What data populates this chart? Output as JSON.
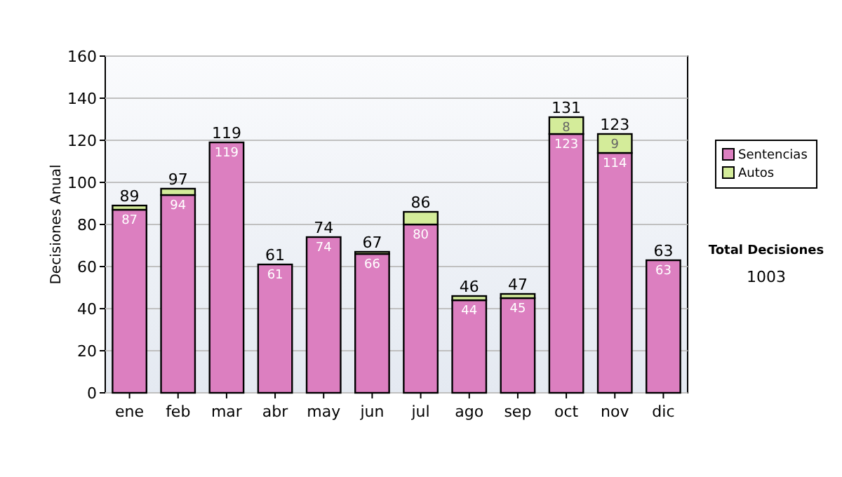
{
  "chart_data": {
    "type": "bar",
    "stacked": true,
    "ylabel": "Decisiones Anual",
    "categories": [
      "ene",
      "feb",
      "mar",
      "abr",
      "may",
      "jun",
      "jul",
      "ago",
      "sep",
      "oct",
      "nov",
      "dic"
    ],
    "series": [
      {
        "name": "Sentencias",
        "color": "#dc7fc0",
        "values": [
          87,
          94,
          119,
          61,
          74,
          66,
          80,
          44,
          45,
          123,
          114,
          63
        ],
        "value_labels": [
          "87",
          "94",
          "119",
          "61",
          "74",
          "66",
          "80",
          "44",
          "45",
          "123",
          "114",
          "63"
        ]
      },
      {
        "name": "Autos",
        "color": "#d4ec9a",
        "values": [
          2,
          3,
          0,
          0,
          0,
          1,
          6,
          2,
          2,
          8,
          9,
          0
        ],
        "value_labels": [
          null,
          null,
          null,
          null,
          null,
          null,
          null,
          null,
          null,
          "8",
          "9",
          null
        ]
      }
    ],
    "totals": [
      "89",
      "97",
      "119",
      "61",
      "74",
      "67",
      "86",
      "46",
      "47",
      "131",
      "123",
      "63"
    ],
    "ylim": [
      0,
      160
    ],
    "yticks": [
      0,
      20,
      40,
      60,
      80,
      100,
      120,
      140,
      160
    ],
    "grid": "y",
    "legend": "right",
    "annotations": [
      "Total Decisiones",
      "1003"
    ]
  }
}
